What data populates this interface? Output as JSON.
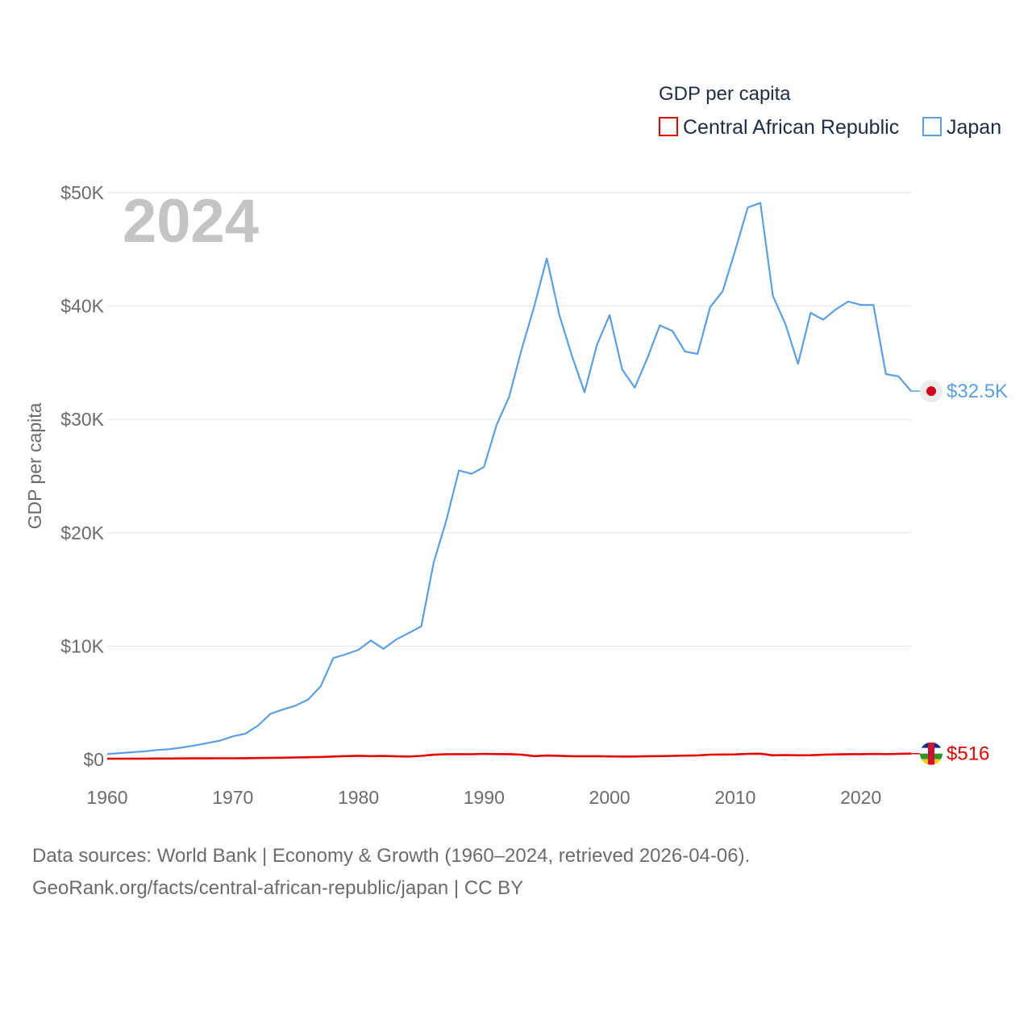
{
  "chart_data": {
    "type": "line",
    "title": "GDP per capita",
    "ylabel": "GDP per capita",
    "xlabel": "",
    "year_label": "2024",
    "xlim": [
      1960,
      2024
    ],
    "ylim": [
      0,
      50000
    ],
    "x_ticks": [
      1960,
      1970,
      1980,
      1990,
      2000,
      2010,
      2020
    ],
    "x_tick_labels": [
      "1960",
      "1970",
      "1980",
      "1990",
      "2000",
      "2010",
      "2020"
    ],
    "y_ticks": [
      0,
      10000,
      20000,
      30000,
      40000,
      50000
    ],
    "y_tick_labels": [
      "$0",
      "$10K",
      "$20K",
      "$30K",
      "$40K",
      "$50K"
    ],
    "grid": true,
    "legend_position": "top-right",
    "series": [
      {
        "name": "Central African Republic",
        "color": "#e60000",
        "end_label": "$516",
        "flag_icon": "central-african-republic-flag-icon",
        "x": [
          1960,
          1961,
          1962,
          1963,
          1964,
          1965,
          1966,
          1967,
          1968,
          1969,
          1970,
          1971,
          1972,
          1973,
          1974,
          1975,
          1976,
          1977,
          1978,
          1979,
          1980,
          1981,
          1982,
          1983,
          1984,
          1985,
          1986,
          1987,
          1988,
          1989,
          1990,
          1991,
          1992,
          1993,
          1994,
          1995,
          1996,
          1997,
          1998,
          1999,
          2000,
          2001,
          2002,
          2003,
          2004,
          2005,
          2006,
          2007,
          2008,
          2009,
          2010,
          2011,
          2012,
          2013,
          2014,
          2015,
          2016,
          2017,
          2018,
          2019,
          2020,
          2021,
          2022,
          2023,
          2024
        ],
        "values": [
          70,
          72,
          75,
          78,
          82,
          87,
          92,
          97,
          100,
          105,
          110,
          115,
          125,
          140,
          160,
          175,
          200,
          220,
          260,
          300,
          330,
          300,
          310,
          280,
          260,
          320,
          420,
          460,
          470,
          460,
          500,
          480,
          470,
          430,
          300,
          350,
          330,
          290,
          290,
          290,
          270,
          260,
          260,
          290,
          300,
          320,
          340,
          360,
          430,
          440,
          450,
          500,
          510,
          370,
          390,
          370,
          380,
          420,
          450,
          470,
          470,
          490,
          480,
          500,
          516
        ]
      },
      {
        "name": "Japan",
        "color": "#5b9fe3",
        "end_label": "$32.5K",
        "flag_icon": "japan-flag-icon",
        "x": [
          1960,
          1961,
          1962,
          1963,
          1964,
          1965,
          1966,
          1967,
          1968,
          1969,
          1970,
          1971,
          1972,
          1973,
          1974,
          1975,
          1976,
          1977,
          1978,
          1979,
          1980,
          1981,
          1982,
          1983,
          1984,
          1985,
          1986,
          1987,
          1988,
          1989,
          1990,
          1991,
          1992,
          1993,
          1994,
          1995,
          1996,
          1997,
          1998,
          1999,
          2000,
          2001,
          2002,
          2003,
          2004,
          2005,
          2006,
          2007,
          2008,
          2009,
          2010,
          2011,
          2012,
          2013,
          2014,
          2015,
          2016,
          2017,
          2018,
          2019,
          2020,
          2021,
          2022,
          2023,
          2024
        ],
        "values": [
          480,
          560,
          640,
          720,
          840,
          920,
          1070,
          1240,
          1450,
          1670,
          2040,
          2280,
          2980,
          4030,
          4420,
          4750,
          5300,
          6460,
          8950,
          9280,
          9670,
          10500,
          9760,
          10580,
          11150,
          11740,
          17400,
          21100,
          25500,
          25200,
          25800,
          29500,
          32000,
          36200,
          40000,
          44200,
          39200,
          35600,
          32400,
          36600,
          39200,
          34400,
          32800,
          35400,
          38300,
          37800,
          35990,
          35780,
          39900,
          41300,
          44900,
          48700,
          49100,
          40900,
          38400,
          34900,
          39400,
          38800,
          39700,
          40400,
          40100,
          40100,
          34000,
          33800,
          32500
        ]
      }
    ]
  },
  "source": {
    "line1": "Data sources: World Bank | Economy & Growth (1960–2024, retrieved 2026-04-06).",
    "line2": "GeoRank.org/facts/central-african-republic/japan | CC BY"
  }
}
